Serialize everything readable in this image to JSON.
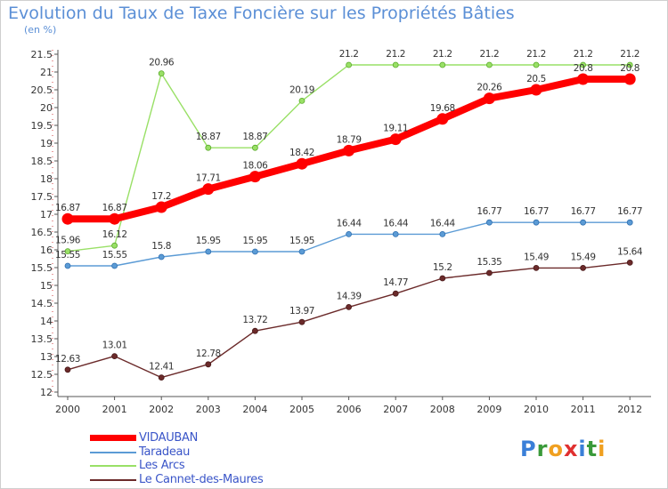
{
  "title": "Evolution du Taux de Taxe Foncière sur les Propriétés Bâties",
  "unit_label": "(en %)",
  "logo": {
    "letters": [
      "P",
      "r",
      "o",
      "x",
      "i",
      "t",
      "i"
    ],
    "colors": [
      "#3a7fd8",
      "#3a9a3a",
      "#f0a020",
      "#e03030",
      "#3a7fd8",
      "#3a9a3a",
      "#f0a020"
    ]
  },
  "chart_data": {
    "type": "line",
    "title": "Evolution du Taux de Taxe Foncière sur les Propriétés Bâties",
    "ylabel": "(en %)",
    "xlabel": "",
    "categories": [
      "2000",
      "2001",
      "2002",
      "2003",
      "2004",
      "2005",
      "2006",
      "2007",
      "2008",
      "2009",
      "2010",
      "2011",
      "2012"
    ],
    "ylim": [
      12,
      21.5
    ],
    "yticks": [
      "12",
      "12.5",
      "13",
      "13.5",
      "14",
      "14.5",
      "15",
      "15.5",
      "16",
      "16.5",
      "17",
      "17.5",
      "18",
      "18.5",
      "19",
      "19.5",
      "20",
      "20.5",
      "21",
      "21.5"
    ],
    "grid": false,
    "legend_position": "bottom-left",
    "series": [
      {
        "name": "VIDAUBAN",
        "color": "#ff0000",
        "emphasis": true,
        "values": [
          16.87,
          16.87,
          17.2,
          17.71,
          18.06,
          18.42,
          18.79,
          19.11,
          19.68,
          20.26,
          20.5,
          20.8,
          20.8
        ],
        "labels": [
          "16.87",
          "16.87",
          "17.2",
          "17.71",
          "18.06",
          "18.42",
          "18.79",
          "19.11",
          "19.68",
          "20.26",
          "20.5",
          "20.8",
          "20.8"
        ]
      },
      {
        "name": "Taradeau",
        "color": "#5b9bd5",
        "values": [
          15.55,
          15.55,
          15.8,
          15.95,
          15.95,
          15.95,
          16.44,
          16.44,
          16.44,
          16.77,
          16.77,
          16.77,
          16.77
        ],
        "labels": [
          "15.55",
          "15.55",
          "15.8",
          "15.95",
          "15.95",
          "15.95",
          "16.44",
          "16.44",
          "16.44",
          "16.77",
          "16.77",
          "16.77",
          "16.77"
        ]
      },
      {
        "name": "Les Arcs",
        "color": "#99e066",
        "values": [
          15.96,
          16.12,
          20.96,
          18.87,
          18.87,
          20.19,
          21.2,
          21.2,
          21.2,
          21.2,
          21.2,
          21.2,
          21.2
        ],
        "labels": [
          "15.96",
          "16.12",
          "20.96",
          "18.87",
          "18.87",
          "20.19",
          "21.2",
          "21.2",
          "21.2",
          "21.2",
          "21.2",
          "21.2",
          "21.2"
        ]
      },
      {
        "name": "Le Cannet-des-Maures",
        "color": "#6b2a2a",
        "values": [
          12.63,
          13.01,
          12.41,
          12.78,
          13.72,
          13.97,
          14.39,
          14.77,
          15.2,
          15.35,
          15.49,
          15.49,
          15.64
        ],
        "labels": [
          "12.63",
          "13.01",
          "12.41",
          "12.78",
          "13.72",
          "13.97",
          "14.39",
          "14.77",
          "15.2",
          "15.35",
          "15.49",
          "15.49",
          "15.64"
        ]
      }
    ]
  }
}
